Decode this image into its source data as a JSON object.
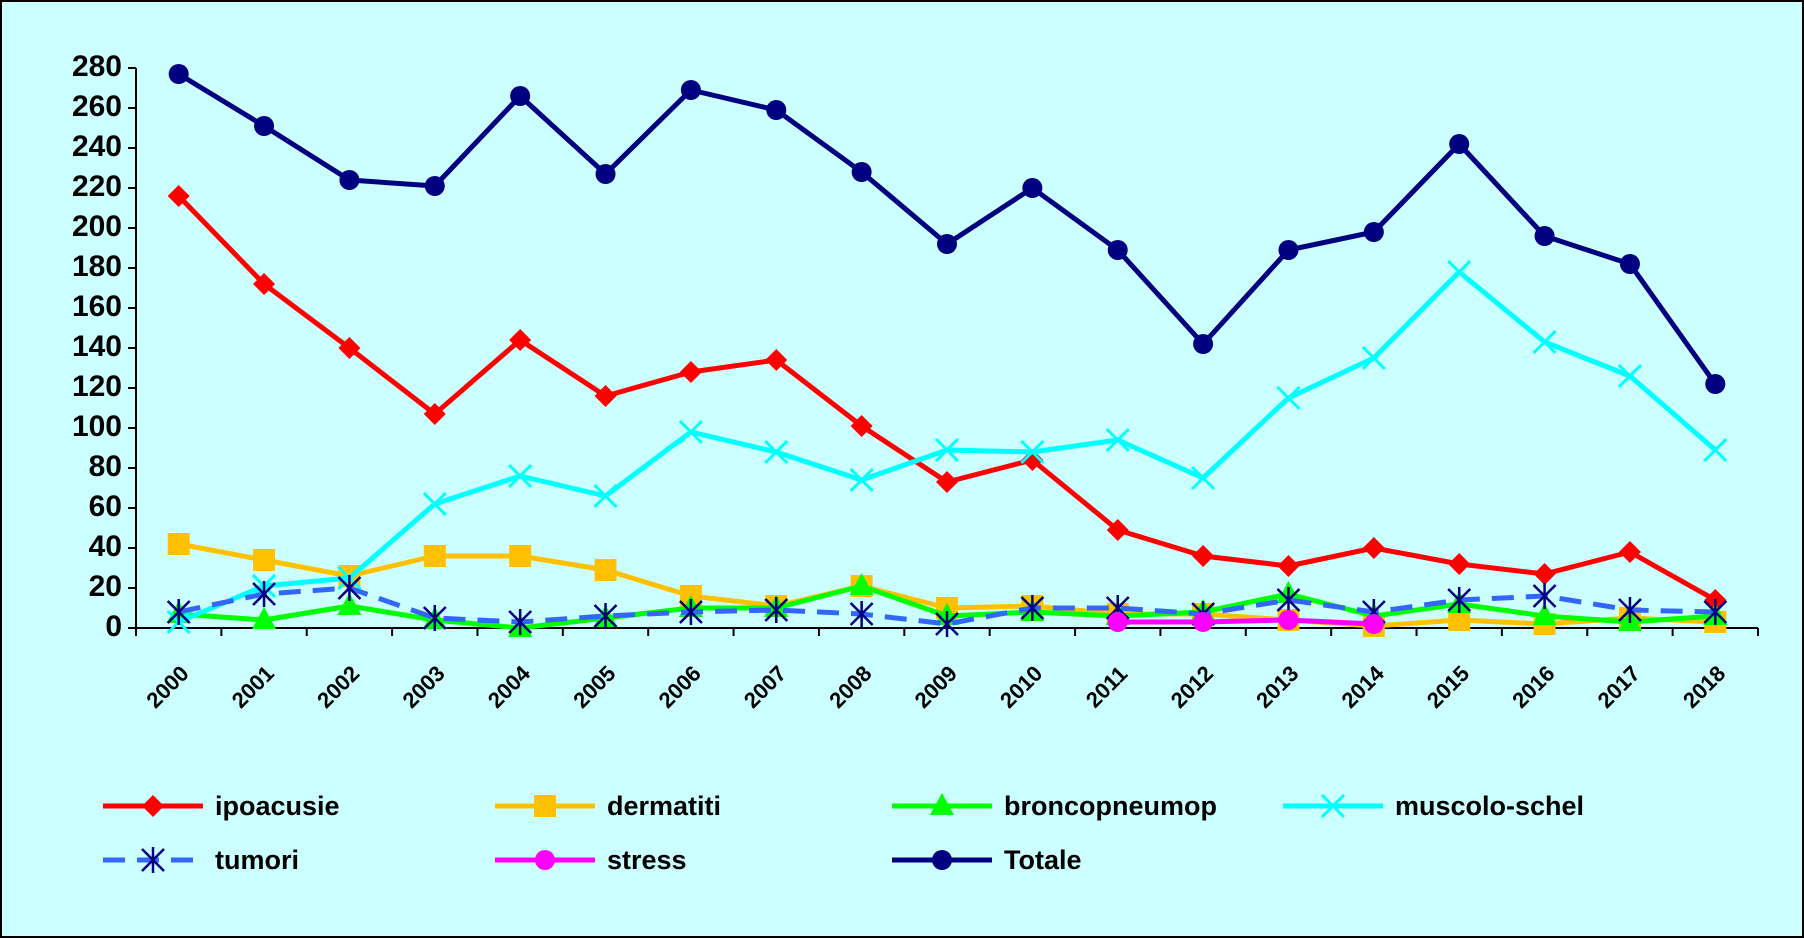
{
  "chart_data": {
    "type": "line",
    "categories": [
      "2000",
      "2001",
      "2002",
      "2003",
      "2004",
      "2005",
      "2006",
      "2007",
      "2008",
      "2009",
      "2010",
      "2011",
      "2012",
      "2013",
      "2014",
      "2015",
      "2016",
      "2017",
      "2018"
    ],
    "ylim": [
      0,
      280
    ],
    "yticks": [
      0,
      20,
      40,
      60,
      80,
      100,
      120,
      140,
      160,
      180,
      200,
      220,
      240,
      260,
      280
    ],
    "series": [
      {
        "name": "ipoacusie",
        "color": "#ff0000",
        "marker": "diamond",
        "values": [
          216,
          172,
          140,
          107,
          144,
          116,
          128,
          134,
          101,
          73,
          84,
          49,
          36,
          31,
          40,
          32,
          27,
          38,
          14
        ]
      },
      {
        "name": "dermatiti",
        "color": "#ffc000",
        "marker": "square",
        "values": [
          42,
          34,
          26,
          36,
          36,
          29,
          16,
          11,
          21,
          10,
          11,
          7,
          7,
          4,
          1,
          4,
          2,
          5,
          3
        ]
      },
      {
        "name": "broncopneumop",
        "color": "#00ff00",
        "marker": "triangle",
        "values": [
          7,
          4,
          11,
          4,
          0,
          5,
          10,
          10,
          21,
          6,
          8,
          6,
          8,
          17,
          6,
          12,
          6,
          3,
          6
        ]
      },
      {
        "name": "muscolo-schel",
        "color": "#00ffff",
        "marker": "x",
        "values": [
          3,
          21,
          25,
          62,
          76,
          66,
          98,
          88,
          74,
          89,
          88,
          94,
          75,
          115,
          135,
          178,
          143,
          126,
          89
        ]
      },
      {
        "name": "tumori",
        "color": "#3366ff",
        "marker": "star",
        "dashed": true,
        "values": [
          8,
          17,
          20,
          5,
          3,
          6,
          8,
          9,
          7,
          2,
          10,
          10,
          7,
          14,
          8,
          14,
          16,
          9,
          8
        ]
      },
      {
        "name": "stress",
        "color": "#ff00ff",
        "marker": "circle",
        "values": [
          null,
          null,
          null,
          null,
          null,
          null,
          null,
          null,
          null,
          null,
          null,
          3,
          3,
          4,
          2,
          null,
          null,
          null,
          null
        ]
      },
      {
        "name": "Totale",
        "color": "#000080",
        "marker": "circle",
        "values": [
          277,
          251,
          224,
          221,
          266,
          227,
          269,
          259,
          228,
          192,
          220,
          189,
          142,
          189,
          198,
          242,
          196,
          182,
          122
        ]
      }
    ]
  }
}
